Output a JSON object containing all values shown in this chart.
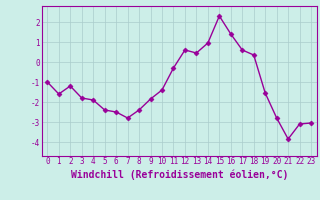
{
  "x": [
    0,
    1,
    2,
    3,
    4,
    5,
    6,
    7,
    8,
    9,
    10,
    11,
    12,
    13,
    14,
    15,
    16,
    17,
    18,
    19,
    20,
    21,
    22,
    23
  ],
  "y": [
    -1.0,
    -1.6,
    -1.2,
    -1.8,
    -1.9,
    -2.4,
    -2.5,
    -2.8,
    -2.4,
    -1.85,
    -1.4,
    -0.3,
    0.6,
    0.45,
    0.95,
    2.3,
    1.4,
    0.6,
    0.35,
    -1.55,
    -2.8,
    -3.85,
    -3.1,
    -3.05
  ],
  "line_color": "#990099",
  "marker": "D",
  "markersize": 2.5,
  "linewidth": 1.0,
  "bg_color": "#cceee8",
  "grid_color": "#aacccc",
  "xlabel": "Windchill (Refroidissement éolien,°C)",
  "xlabel_color": "#990099",
  "tick_color": "#990099",
  "ylim": [
    -4.7,
    2.8
  ],
  "xlim": [
    -0.5,
    23.5
  ],
  "yticks": [
    -4,
    -3,
    -2,
    -1,
    0,
    1,
    2
  ],
  "xticks": [
    0,
    1,
    2,
    3,
    4,
    5,
    6,
    7,
    8,
    9,
    10,
    11,
    12,
    13,
    14,
    15,
    16,
    17,
    18,
    19,
    20,
    21,
    22,
    23
  ],
  "tick_fontsize": 5.5,
  "xlabel_fontsize": 7.0
}
